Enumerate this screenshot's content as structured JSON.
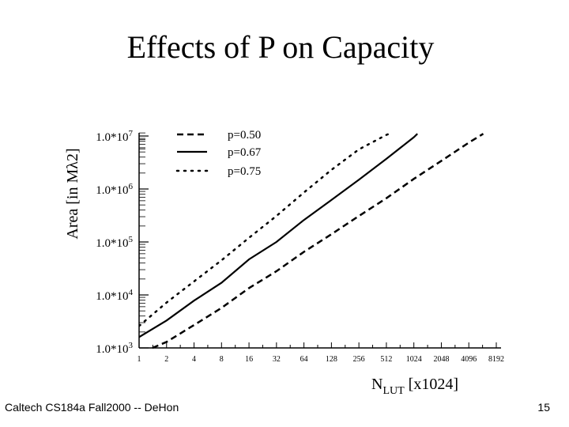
{
  "slide": {
    "title": "Effects of P on Capacity",
    "footer_left": "Caltech CS184a Fall2000 -- DeHon",
    "page_number": "15"
  },
  "chart_data": {
    "type": "line",
    "title": "Effects of P on Capacity",
    "xlabel": {
      "main": "N",
      "sub": "LUT",
      "rest": " [x1024]"
    },
    "ylabel": "Area [in Mλ2]",
    "x_scale": "log2",
    "y_scale": "log10",
    "xlim": [
      1,
      8192
    ],
    "ylim": [
      1000,
      10000000
    ],
    "x_ticks": [
      1,
      2,
      4,
      8,
      16,
      32,
      64,
      128,
      256,
      512,
      1024,
      2048,
      4096,
      8192
    ],
    "x_tick_labels": [
      "1",
      "2",
      "4",
      "8",
      "16",
      "32",
      "64",
      "128",
      "256",
      "512",
      "1024",
      "2048",
      "4096",
      "8192"
    ],
    "y_ticks": [
      1000,
      10000,
      100000,
      1000000,
      10000000
    ],
    "y_tick_labels": [
      {
        "base": "1.0*10",
        "exp": "3"
      },
      {
        "base": "1.0*10",
        "exp": "4"
      },
      {
        "base": "1.0*10",
        "exp": "5"
      },
      {
        "base": "1.0*10",
        "exp": "6"
      },
      {
        "base": "1.0*10",
        "exp": "7"
      }
    ],
    "series": [
      {
        "name": "p=0.50",
        "style": "dashed",
        "x": [
          1.4,
          2,
          4,
          8,
          16,
          32,
          64,
          128,
          256,
          512,
          1024,
          2048,
          4096,
          5900
        ],
        "y": [
          1000,
          1300,
          2700,
          5700,
          13500,
          28000,
          65000,
          140000,
          310000,
          670000,
          1550000,
          3400000,
          7500000,
          11000000
        ]
      },
      {
        "name": "p=0.67",
        "style": "solid",
        "x": [
          1,
          2,
          4,
          8,
          16,
          32,
          64,
          128,
          256,
          512,
          1024,
          1120
        ],
        "y": [
          1600,
          3300,
          7800,
          17000,
          47000,
          100000,
          260000,
          620000,
          1500000,
          3700000,
          9500000,
          11000000
        ]
      },
      {
        "name": "p=0.75",
        "style": "dotted",
        "x": [
          1,
          2,
          4,
          8,
          16,
          32,
          64,
          128,
          256,
          512,
          550
        ],
        "y": [
          2600,
          7200,
          18000,
          45000,
          120000,
          310000,
          860000,
          2300000,
          5600000,
          10500000,
          11000000
        ]
      }
    ],
    "legend_position": "top-center"
  }
}
